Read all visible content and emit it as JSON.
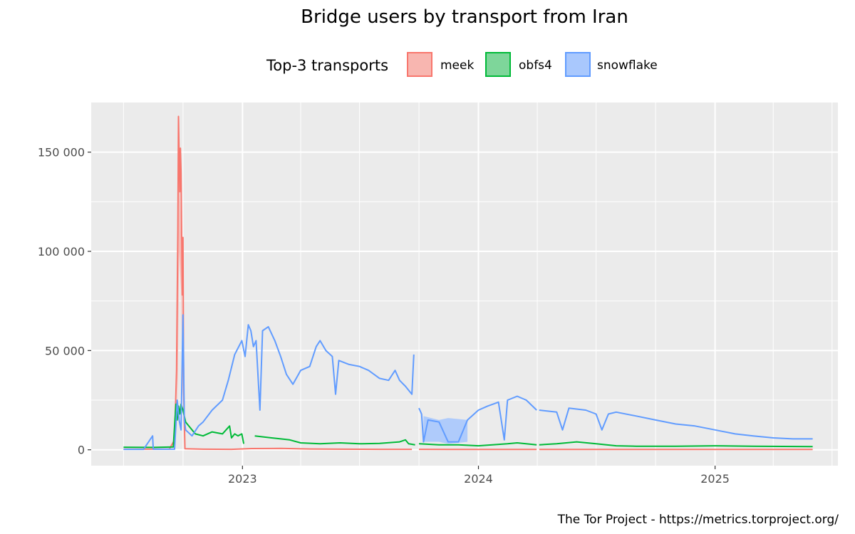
{
  "chart_data": {
    "type": "line",
    "title": "Bridge users by transport from Iran",
    "legend": {
      "title": "Top-3 transports",
      "placement": "top",
      "entries": [
        {
          "name": "meek",
          "color": "#F8766D",
          "fill": "#F8B6B0"
        },
        {
          "name": "obfs4",
          "color": "#00BA38",
          "fill": "#7ED69A"
        },
        {
          "name": "snowflake",
          "color": "#619CFF",
          "fill": "#A9C8FD"
        }
      ]
    },
    "x_axis": {
      "type": "date",
      "range": [
        "2022-05-12",
        "2025-07-10"
      ],
      "ticks": [
        {
          "date": "2023-01-01",
          "label": "2023"
        },
        {
          "date": "2024-01-01",
          "label": "2024"
        },
        {
          "date": "2025-01-01",
          "label": "2025"
        }
      ]
    },
    "y_axis": {
      "range": [
        -8000,
        175000
      ],
      "ticks": [
        {
          "value": 0,
          "label": "0"
        },
        {
          "value": 50000,
          "label": "50 000"
        },
        {
          "value": 100000,
          "label": "100 000"
        },
        {
          "value": 150000,
          "label": "150 000"
        }
      ]
    },
    "grid": true,
    "caption": "The Tor Project - https://metrics.torproject.org/",
    "series": [
      {
        "name": "meek",
        "color": "#F8766D",
        "segments": [
          [
            [
              "2022-07-01",
              300
            ],
            [
              "2022-08-01",
              300
            ],
            [
              "2022-09-10",
              400
            ],
            [
              "2022-09-18",
              5000
            ],
            [
              "2022-09-21",
              40000
            ],
            [
              "2022-09-23",
              110000
            ],
            [
              "2022-09-24",
              168000
            ],
            [
              "2022-09-26",
              130000
            ],
            [
              "2022-09-27",
              152000
            ],
            [
              "2022-09-28",
              140000
            ],
            [
              "2022-09-29",
              108000
            ],
            [
              "2022-09-30",
              78000
            ],
            [
              "2022-10-01",
              107000
            ],
            [
              "2022-10-02",
              30000
            ],
            [
              "2022-10-04",
              500
            ],
            [
              "2022-11-01",
              300
            ],
            [
              "2022-12-15",
              200
            ],
            [
              "2023-01-15",
              600
            ],
            [
              "2023-03-01",
              700
            ],
            [
              "2023-04-15",
              400
            ],
            [
              "2023-06-01",
              300
            ],
            [
              "2023-08-01",
              200
            ],
            [
              "2023-09-20",
              200
            ]
          ],
          [
            [
              "2023-10-01",
              200
            ],
            [
              "2024-01-01",
              150
            ],
            [
              "2024-03-31",
              150
            ]
          ],
          [
            [
              "2024-04-04",
              150
            ],
            [
              "2025-01-01",
              150
            ],
            [
              "2025-06-01",
              150
            ]
          ]
        ]
      },
      {
        "name": "obfs4",
        "color": "#00BA38",
        "segments": [
          [
            [
              "2022-07-01",
              1300
            ],
            [
              "2022-08-15",
              1200
            ],
            [
              "2022-09-16",
              1400
            ],
            [
              "2022-09-20",
              23000
            ],
            [
              "2022-09-22",
              15000
            ],
            [
              "2022-09-24",
              22000
            ],
            [
              "2022-09-26",
              18000
            ],
            [
              "2022-09-28",
              23000
            ],
            [
              "2022-10-01",
              20000
            ],
            [
              "2022-10-05",
              14000
            ],
            [
              "2022-10-10",
              12000
            ],
            [
              "2022-10-20",
              8000
            ],
            [
              "2022-11-01",
              7000
            ],
            [
              "2022-11-15",
              9000
            ],
            [
              "2022-12-01",
              8000
            ],
            [
              "2022-12-12",
              12000
            ],
            [
              "2022-12-15",
              6000
            ],
            [
              "2022-12-20",
              8000
            ],
            [
              "2022-12-25",
              7000
            ],
            [
              "2022-12-31",
              8000
            ],
            [
              "2023-01-03",
              3000
            ]
          ],
          [
            [
              "2023-01-20",
              7000
            ],
            [
              "2023-02-15",
              6000
            ],
            [
              "2023-03-15",
              5000
            ],
            [
              "2023-04-01",
              3500
            ],
            [
              "2023-05-01",
              3000
            ],
            [
              "2023-06-01",
              3500
            ],
            [
              "2023-07-01",
              3000
            ],
            [
              "2023-08-01",
              3200
            ],
            [
              "2023-09-01",
              4000
            ],
            [
              "2023-09-10",
              5000
            ],
            [
              "2023-09-15",
              3000
            ],
            [
              "2023-09-25",
              2500
            ]
          ],
          [
            [
              "2023-10-01",
              3000
            ],
            [
              "2023-11-01",
              2500
            ],
            [
              "2023-12-01",
              2500
            ],
            [
              "2024-01-01",
              2000
            ],
            [
              "2024-02-15",
              3000
            ],
            [
              "2024-03-01",
              3500
            ],
            [
              "2024-03-31",
              2500
            ]
          ],
          [
            [
              "2024-04-04",
              2500
            ],
            [
              "2024-05-01",
              3000
            ],
            [
              "2024-06-01",
              4000
            ],
            [
              "2024-07-01",
              3000
            ],
            [
              "2024-08-01",
              2000
            ],
            [
              "2024-09-01",
              1800
            ],
            [
              "2024-11-01",
              1800
            ],
            [
              "2025-01-01",
              2000
            ],
            [
              "2025-03-01",
              1800
            ],
            [
              "2025-06-01",
              1600
            ]
          ]
        ]
      },
      {
        "name": "snowflake",
        "color": "#619CFF",
        "segments": [
          [
            [
              "2022-07-01",
              200
            ],
            [
              "2022-08-01",
              200
            ],
            [
              "2022-08-15",
              7000
            ],
            [
              "2022-08-16",
              300
            ],
            [
              "2022-09-18",
              300
            ],
            [
              "2022-09-22",
              25000
            ],
            [
              "2022-09-25",
              15000
            ],
            [
              "2022-09-28",
              10000
            ],
            [
              "2022-10-01",
              68000
            ],
            [
              "2022-10-03",
              15000
            ],
            [
              "2022-10-05",
              10000
            ],
            [
              "2022-10-15",
              7000
            ],
            [
              "2022-10-25",
              12000
            ],
            [
              "2022-11-01",
              14000
            ],
            [
              "2022-11-15",
              20000
            ],
            [
              "2022-12-01",
              25000
            ],
            [
              "2022-12-10",
              35000
            ],
            [
              "2022-12-20",
              48000
            ],
            [
              "2022-12-31",
              55000
            ],
            [
              "2023-01-05",
              47000
            ],
            [
              "2023-01-10",
              63000
            ],
            [
              "2023-01-14",
              60000
            ],
            [
              "2023-01-18",
              52000
            ],
            [
              "2023-01-22",
              55000
            ],
            [
              "2023-01-28",
              20000
            ],
            [
              "2023-02-01",
              60000
            ],
            [
              "2023-02-10",
              62000
            ],
            [
              "2023-02-20",
              55000
            ],
            [
              "2023-03-01",
              47000
            ],
            [
              "2023-03-10",
              38000
            ],
            [
              "2023-03-20",
              33000
            ],
            [
              "2023-04-01",
              40000
            ],
            [
              "2023-04-15",
              42000
            ],
            [
              "2023-04-25",
              52000
            ],
            [
              "2023-05-01",
              55000
            ],
            [
              "2023-05-10",
              50000
            ],
            [
              "2023-05-20",
              47000
            ],
            [
              "2023-05-25",
              28000
            ],
            [
              "2023-05-30",
              45000
            ],
            [
              "2023-06-15",
              43000
            ],
            [
              "2023-07-01",
              42000
            ],
            [
              "2023-07-15",
              40000
            ],
            [
              "2023-08-01",
              36000
            ],
            [
              "2023-08-15",
              35000
            ],
            [
              "2023-08-25",
              40000
            ],
            [
              "2023-09-01",
              35000
            ],
            [
              "2023-09-10",
              32000
            ],
            [
              "2023-09-20",
              28000
            ],
            [
              "2023-09-23",
              48000
            ]
          ],
          [
            [
              "2023-10-01",
              21000
            ],
            [
              "2023-10-05",
              18000
            ],
            [
              "2023-10-08",
              4000
            ],
            [
              "2023-10-15",
              15000
            ],
            [
              "2023-11-01",
              14000
            ],
            [
              "2023-11-15",
              4000
            ],
            [
              "2023-12-01",
              4000
            ],
            [
              "2023-12-15",
              15000
            ],
            [
              "2024-01-01",
              20000
            ],
            [
              "2024-01-15",
              22000
            ],
            [
              "2024-02-01",
              24000
            ],
            [
              "2024-02-10",
              5000
            ],
            [
              "2024-02-15",
              25000
            ],
            [
              "2024-03-01",
              27000
            ],
            [
              "2024-03-15",
              25000
            ],
            [
              "2024-03-31",
              20000
            ]
          ],
          [
            [
              "2024-04-04",
              20000
            ],
            [
              "2024-05-01",
              19000
            ],
            [
              "2024-05-10",
              10000
            ],
            [
              "2024-05-20",
              21000
            ],
            [
              "2024-06-15",
              20000
            ],
            [
              "2024-07-01",
              18000
            ],
            [
              "2024-07-10",
              10000
            ],
            [
              "2024-07-20",
              18000
            ],
            [
              "2024-08-01",
              19000
            ],
            [
              "2024-09-01",
              17000
            ],
            [
              "2024-10-01",
              15000
            ],
            [
              "2024-11-01",
              13000
            ],
            [
              "2024-12-01",
              12000
            ],
            [
              "2025-01-01",
              10000
            ],
            [
              "2025-02-01",
              8000
            ],
            [
              "2025-03-01",
              7000
            ],
            [
              "2025-04-01",
              6000
            ],
            [
              "2025-05-01",
              5500
            ],
            [
              "2025-06-01",
              5500
            ]
          ]
        ]
      }
    ],
    "bands": [
      {
        "series": "meek",
        "between": "series:0:2",
        "points": [
          [
            "2022-09-22",
            5000,
            40000
          ],
          [
            "2022-09-25",
            100000,
            150000
          ],
          [
            "2022-09-28",
            80000,
            108000
          ],
          [
            "2022-10-02",
            3000,
            20000
          ]
        ]
      },
      {
        "series": "snowflake",
        "points": [
          [
            "2023-10-08",
            4000,
            17000
          ],
          [
            "2023-11-01",
            4000,
            15000
          ],
          [
            "2023-11-15",
            3000,
            16000
          ],
          [
            "2023-12-01",
            3500,
            15500
          ],
          [
            "2023-12-15",
            4000,
            15000
          ]
        ]
      }
    ]
  }
}
